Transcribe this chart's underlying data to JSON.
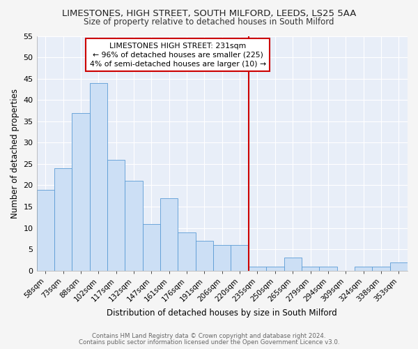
{
  "title": "LIMESTONES, HIGH STREET, SOUTH MILFORD, LEEDS, LS25 5AA",
  "subtitle": "Size of property relative to detached houses in South Milford",
  "xlabel": "Distribution of detached houses by size in South Milford",
  "ylabel": "Number of detached properties",
  "footer_line1": "Contains HM Land Registry data © Crown copyright and database right 2024.",
  "footer_line2": "Contains public sector information licensed under the Open Government Licence v3.0.",
  "bar_labels": [
    "58sqm",
    "73sqm",
    "88sqm",
    "102sqm",
    "117sqm",
    "132sqm",
    "147sqm",
    "161sqm",
    "176sqm",
    "191sqm",
    "206sqm",
    "220sqm",
    "235sqm",
    "250sqm",
    "265sqm",
    "279sqm",
    "294sqm",
    "309sqm",
    "324sqm",
    "338sqm",
    "353sqm"
  ],
  "bar_values": [
    19,
    24,
    37,
    44,
    26,
    21,
    11,
    17,
    9,
    7,
    6,
    6,
    1,
    1,
    3,
    1,
    1,
    0,
    1,
    1,
    2
  ],
  "bar_color": "#ccdff5",
  "bar_edge_color": "#5b9bd5",
  "fig_bg_color": "#f5f5f5",
  "plot_bg_color": "#e8eef8",
  "grid_color": "#ffffff",
  "ref_line_color": "#cc0000",
  "annotation_text": "LIMESTONES HIGH STREET: 231sqm\n← 96% of detached houses are smaller (225)\n4% of semi-detached houses are larger (10) →",
  "annotation_box_color": "#cc0000",
  "ylim": [
    0,
    55
  ],
  "yticks": [
    0,
    5,
    10,
    15,
    20,
    25,
    30,
    35,
    40,
    45,
    50,
    55
  ]
}
